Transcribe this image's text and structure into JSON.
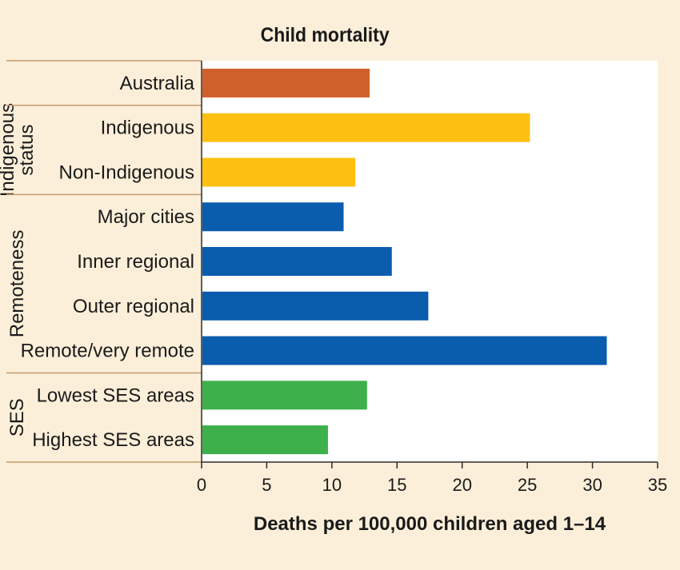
{
  "chart_data": {
    "type": "bar",
    "orientation": "horizontal",
    "title": "Child mortality",
    "xlabel": "Deaths per 100,000 children aged 1–14",
    "ylabel": "",
    "xlim": [
      0,
      35
    ],
    "xticks": [
      0,
      5,
      10,
      15,
      20,
      25,
      30,
      35
    ],
    "grid": false,
    "background": "#fcefd9",
    "plot_background": "#ffffff",
    "groups": [
      {
        "label": "",
        "categories": [
          "Australia"
        ]
      },
      {
        "label": "Indigenous status",
        "categories": [
          "Indigenous",
          "Non-Indigenous"
        ]
      },
      {
        "label": "Remoteness",
        "categories": [
          "Major cities",
          "Inner regional",
          "Outer regional",
          "Remote/very remote"
        ]
      },
      {
        "label": "SES",
        "categories": [
          "Lowest SES areas",
          "Highest SES areas"
        ]
      }
    ],
    "categories": [
      "Australia",
      "Indigenous",
      "Non-Indigenous",
      "Major cities",
      "Inner regional",
      "Outer regional",
      "Remote/very remote",
      "Lowest SES areas",
      "Highest SES areas"
    ],
    "values": [
      12.9,
      25.2,
      11.8,
      10.9,
      14.6,
      17.4,
      31.1,
      12.7,
      9.7
    ],
    "colors": [
      "#d0602b",
      "#fdc010",
      "#fdc010",
      "#0a5cad",
      "#0a5cad",
      "#0a5cad",
      "#0a5cad",
      "#3db04b",
      "#3db04b"
    ]
  }
}
